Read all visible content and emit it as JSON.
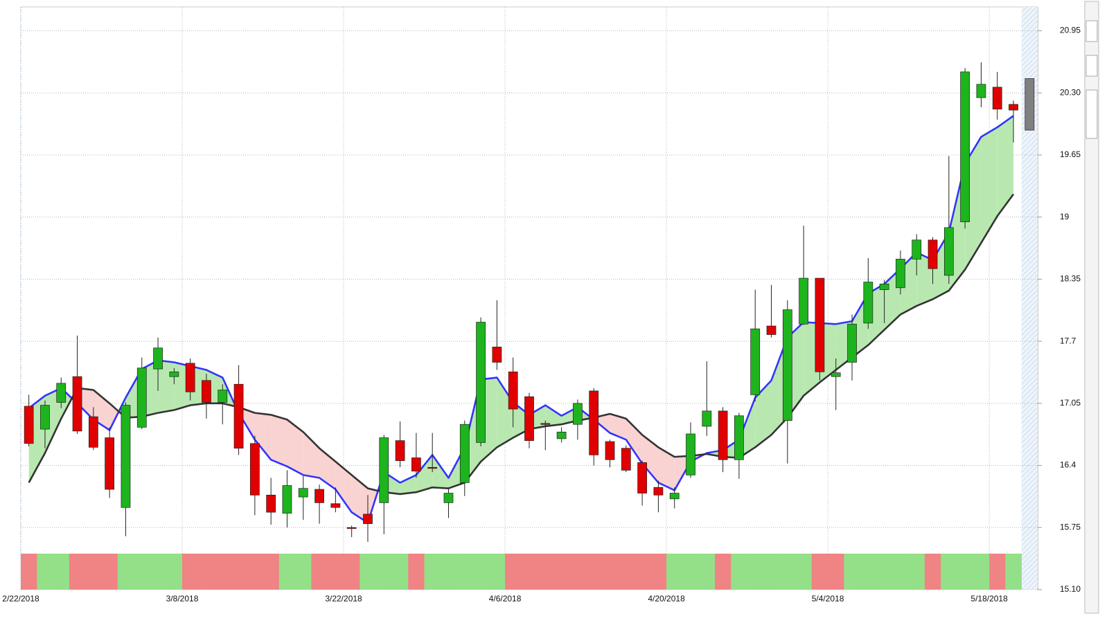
{
  "chart_data": {
    "type": "candlestick",
    "categories": [
      "2/22/2018",
      null,
      null,
      null,
      null,
      null,
      null,
      null,
      null,
      null,
      "3/8/2018",
      null,
      null,
      null,
      null,
      null,
      null,
      null,
      null,
      null,
      "3/22/2018",
      null,
      null,
      null,
      null,
      null,
      null,
      null,
      null,
      null,
      "4/6/2018",
      null,
      null,
      null,
      null,
      null,
      null,
      null,
      null,
      null,
      "4/20/2018",
      null,
      null,
      null,
      null,
      null,
      null,
      null,
      null,
      null,
      "5/4/2018",
      null,
      null,
      null,
      null,
      null,
      null,
      null,
      null,
      null,
      "5/18/2018",
      null
    ],
    "open": [
      17.02,
      16.78,
      17.06,
      17.33,
      16.91,
      16.69,
      15.96,
      16.8,
      17.41,
      17.33,
      17.47,
      17.29,
      17.06,
      17.25,
      16.63,
      16.09,
      15.9,
      16.07,
      16.15,
      16.0,
      15.75,
      15.89,
      16.01,
      16.66,
      16.48,
      16.38,
      16.01,
      16.22,
      16.64,
      17.64,
      17.38,
      17.12,
      16.84,
      16.68,
      16.83,
      17.18,
      16.65,
      16.58,
      16.43,
      16.17,
      16.05,
      16.3,
      16.81,
      16.97,
      16.46,
      17.14,
      17.86,
      16.87,
      17.88,
      18.36,
      17.33,
      17.48,
      17.89,
      18.24,
      18.26,
      18.56,
      18.76,
      18.39,
      18.95,
      20.25,
      20.36,
      20.18
    ],
    "high": [
      17.14,
      17.08,
      17.32,
      17.76,
      17.01,
      16.8,
      17.06,
      17.53,
      17.74,
      17.42,
      17.52,
      17.36,
      17.25,
      17.45,
      16.71,
      16.27,
      16.35,
      16.29,
      16.2,
      16.17,
      15.77,
      16.09,
      16.72,
      16.86,
      16.74,
      16.74,
      16.17,
      16.87,
      17.95,
      18.13,
      17.53,
      17.16,
      16.87,
      16.8,
      17.09,
      17.21,
      16.67,
      16.61,
      16.45,
      16.24,
      16.17,
      16.85,
      17.49,
      17.01,
      16.95,
      18.24,
      18.29,
      18.13,
      18.91,
      18.36,
      17.52,
      17.98,
      18.57,
      18.34,
      18.65,
      18.82,
      18.79,
      19.64,
      20.56,
      20.62,
      20.52,
      20.22
    ],
    "low": [
      16.6,
      16.58,
      17.0,
      16.73,
      16.56,
      16.06,
      15.66,
      16.78,
      17.18,
      17.25,
      17.08,
      16.89,
      16.83,
      16.51,
      15.88,
      15.78,
      15.75,
      15.83,
      15.79,
      15.91,
      15.65,
      15.6,
      15.68,
      16.38,
      16.27,
      16.33,
      15.85,
      16.08,
      16.6,
      17.4,
      16.8,
      16.58,
      16.56,
      16.64,
      16.67,
      16.4,
      16.38,
      16.33,
      15.98,
      15.91,
      15.95,
      16.27,
      16.71,
      16.33,
      16.26,
      17.07,
      17.74,
      16.42,
      17.87,
      17.29,
      16.98,
      17.29,
      17.83,
      17.89,
      18.19,
      18.39,
      18.3,
      18.3,
      18.88,
      20.15,
      20.02,
      19.78
    ],
    "close": [
      16.63,
      17.03,
      17.26,
      16.76,
      16.59,
      16.15,
      17.03,
      17.42,
      17.63,
      17.38,
      17.17,
      17.06,
      17.19,
      16.58,
      16.09,
      15.91,
      16.19,
      16.16,
      16.01,
      15.96,
      15.74,
      15.79,
      16.69,
      16.45,
      16.34,
      16.37,
      16.11,
      16.83,
      17.9,
      17.48,
      16.99,
      16.66,
      16.83,
      16.75,
      17.05,
      16.51,
      16.46,
      16.35,
      16.11,
      16.09,
      16.11,
      16.73,
      16.97,
      16.46,
      16.92,
      17.83,
      17.77,
      18.03,
      18.36,
      17.38,
      17.37,
      17.88,
      18.32,
      18.3,
      18.56,
      18.76,
      18.46,
      18.89,
      20.52,
      20.39,
      20.13,
      20.12
    ],
    "up_color": "#1eb41e",
    "down_color": "#e00000",
    "pending": {
      "open": 20.45,
      "close": 19.91,
      "color": "#808080"
    },
    "lines": [
      {
        "color": "#3333ff",
        "values": [
          17.0,
          17.13,
          17.21,
          17.05,
          16.88,
          16.77,
          17.11,
          17.41,
          17.5,
          17.48,
          17.44,
          17.4,
          17.32,
          16.95,
          16.67,
          16.46,
          16.39,
          16.3,
          16.27,
          16.15,
          15.91,
          15.8,
          16.33,
          16.22,
          16.3,
          16.51,
          16.27,
          16.59,
          17.3,
          17.32,
          17.06,
          16.93,
          17.03,
          16.92,
          17.01,
          16.88,
          16.74,
          16.67,
          16.42,
          16.22,
          16.14,
          16.44,
          16.53,
          16.56,
          16.67,
          17.11,
          17.29,
          17.74,
          17.9,
          17.89,
          17.88,
          17.91,
          18.2,
          18.3,
          18.46,
          18.63,
          18.55,
          18.84,
          19.56,
          19.84,
          19.94,
          20.06
        ]
      },
      {
        "color": "#333333",
        "values": [
          16.22,
          16.53,
          16.89,
          17.21,
          17.19,
          17.05,
          16.9,
          16.91,
          16.95,
          16.98,
          17.03,
          17.05,
          17.05,
          17.01,
          16.95,
          16.93,
          16.88,
          16.75,
          16.58,
          16.44,
          16.3,
          16.16,
          16.12,
          16.1,
          16.12,
          16.17,
          16.16,
          16.22,
          16.44,
          16.59,
          16.69,
          16.78,
          16.81,
          16.83,
          16.87,
          16.9,
          16.94,
          16.89,
          16.72,
          16.59,
          16.49,
          16.5,
          16.52,
          16.49,
          16.48,
          16.59,
          16.72,
          16.9,
          17.13,
          17.27,
          17.4,
          17.53,
          17.66,
          17.82,
          17.98,
          18.07,
          18.14,
          18.23,
          18.45,
          18.73,
          19.01,
          19.24
        ]
      }
    ],
    "fill_colors": {
      "above": "#b8e8b0",
      "below": "#f9d2d2"
    },
    "signal": [
      "down",
      "up",
      "up",
      "down",
      "down",
      "down",
      "up",
      "up",
      "up",
      "up",
      "down",
      "down",
      "down",
      "down",
      "down",
      "down",
      "up",
      "up",
      "down",
      "down",
      "down",
      "up",
      "up",
      "up",
      "down",
      "up",
      "up",
      "up",
      "up",
      "up",
      "down",
      "down",
      "down",
      "down",
      "down",
      "down",
      "down",
      "down",
      "down",
      "down",
      "up",
      "up",
      "up",
      "down",
      "up",
      "up",
      "up",
      "up",
      "up",
      "down",
      "down",
      "up",
      "up",
      "up",
      "up",
      "up",
      "down",
      "up",
      "up",
      "up",
      "down",
      "up"
    ],
    "signal_colors": {
      "up": "#93e088",
      "down": "#f08383"
    },
    "ylim": [
      15.1,
      21.2
    ],
    "yticks": [
      {
        "value": 15.1,
        "label": "15.10"
      },
      15.75,
      16.4,
      17.05,
      17.7,
      18.35,
      19.0,
      19.65,
      {
        "value": 20.3,
        "label": "20.30"
      },
      20.95
    ],
    "grid": true
  }
}
